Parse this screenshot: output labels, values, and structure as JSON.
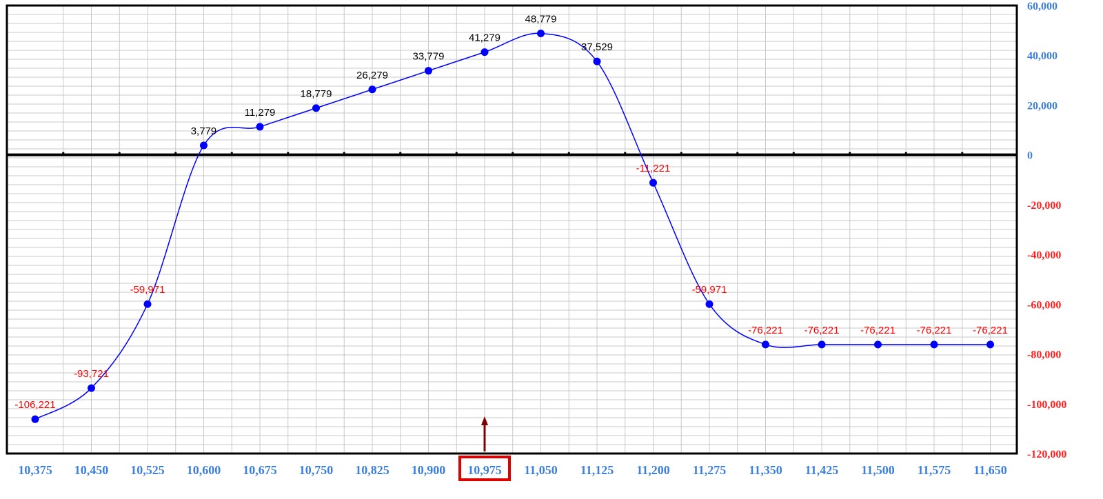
{
  "chart_data": {
    "type": "line",
    "x": [
      10375,
      10450,
      10525,
      10600,
      10675,
      10750,
      10825,
      10900,
      10975,
      11050,
      11125,
      11200,
      11275,
      11350,
      11425,
      11500,
      11575,
      11650
    ],
    "x_labels": [
      "10,375",
      "10,450",
      "10,525",
      "10,600",
      "10,675",
      "10,750",
      "10,825",
      "10,900",
      "10,975",
      "11,050",
      "11,125",
      "11,200",
      "11,275",
      "11,350",
      "11,425",
      "11,500",
      "11,575",
      "11,650"
    ],
    "series": [
      {
        "values": [
          -106221,
          -93721,
          -59971,
          3779,
          11279,
          18779,
          26279,
          33779,
          41279,
          48779,
          37529,
          -11221,
          -59971,
          -76221,
          -76221,
          -76221,
          -76221,
          -76221
        ],
        "labels": [
          "-106,221",
          "-93,721",
          "-59,971",
          "3,779",
          "11,279",
          "18,779",
          "26,279",
          "33,779",
          "41,279",
          "48,779",
          "37,529",
          "-11,221",
          "-59,971",
          "-76,221",
          "-76,221",
          "-76,221",
          "-76,221",
          "-76,221"
        ]
      }
    ],
    "ylim": [
      -120000,
      60000
    ],
    "y_ticks": [
      60000,
      40000,
      20000,
      0,
      -20000,
      -40000,
      -60000,
      -80000,
      -100000,
      -120000
    ],
    "y_tick_labels": [
      "60,000",
      "40,000",
      "20,000",
      "0",
      "-20,000",
      "-40,000",
      "-60,000",
      "-80,000",
      "-100,000",
      "-120,000"
    ],
    "y_axis_position": "right",
    "grid": true,
    "highlighted_x": "10,975",
    "highlight_marker": "up-arrow",
    "colors": {
      "line": "#0000ff",
      "point": "#0000ff",
      "positive_label": "#000000",
      "negative_label": "#ff0000",
      "x_tick": "#3d7fe0",
      "y_tick_positive": "#3d7fe0",
      "y_tick_negative": "#ff2020",
      "highlight_box": "#e00000",
      "arrow": "#800000",
      "grid": "#c8c8c8",
      "zero_line": "#000000"
    }
  }
}
